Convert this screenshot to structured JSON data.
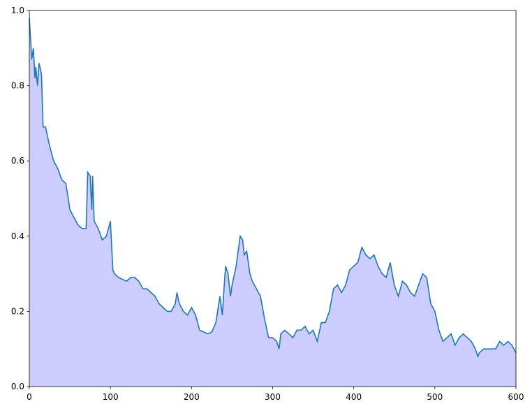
{
  "chart_data": {
    "type": "area",
    "x": [
      0,
      3,
      5,
      7,
      8,
      10,
      12,
      15,
      17,
      20,
      25,
      30,
      35,
      40,
      45,
      48,
      50,
      55,
      60,
      65,
      70,
      72,
      75,
      77,
      78,
      80,
      85,
      90,
      95,
      100,
      103,
      105,
      110,
      115,
      120,
      125,
      130,
      135,
      140,
      145,
      150,
      155,
      160,
      165,
      170,
      175,
      180,
      182,
      185,
      190,
      195,
      200,
      205,
      210,
      215,
      220,
      225,
      230,
      235,
      238,
      240,
      242,
      245,
      248,
      250,
      255,
      260,
      263,
      265,
      268,
      272,
      275,
      280,
      285,
      290,
      295,
      300,
      305,
      308,
      310,
      315,
      320,
      325,
      330,
      335,
      340,
      345,
      350,
      355,
      360,
      365,
      370,
      375,
      380,
      385,
      390,
      395,
      400,
      405,
      410,
      415,
      420,
      425,
      430,
      435,
      440,
      445,
      450,
      455,
      460,
      465,
      470,
      475,
      480,
      485,
      490,
      495,
      500,
      505,
      510,
      515,
      520,
      525,
      530,
      535,
      540,
      545,
      550,
      553,
      555,
      560,
      565,
      570,
      575,
      580,
      585,
      590,
      595,
      600
    ],
    "values": [
      0.98,
      0.87,
      0.9,
      0.82,
      0.85,
      0.8,
      0.86,
      0.83,
      0.69,
      0.69,
      0.64,
      0.6,
      0.58,
      0.55,
      0.54,
      0.5,
      0.47,
      0.45,
      0.43,
      0.42,
      0.42,
      0.57,
      0.56,
      0.47,
      0.56,
      0.44,
      0.42,
      0.39,
      0.4,
      0.44,
      0.31,
      0.3,
      0.29,
      0.285,
      0.28,
      0.29,
      0.29,
      0.28,
      0.26,
      0.26,
      0.25,
      0.24,
      0.22,
      0.21,
      0.2,
      0.2,
      0.22,
      0.25,
      0.22,
      0.2,
      0.19,
      0.21,
      0.19,
      0.15,
      0.145,
      0.14,
      0.145,
      0.17,
      0.24,
      0.19,
      0.26,
      0.32,
      0.3,
      0.24,
      0.27,
      0.32,
      0.4,
      0.39,
      0.35,
      0.36,
      0.3,
      0.28,
      0.26,
      0.24,
      0.18,
      0.13,
      0.13,
      0.12,
      0.1,
      0.14,
      0.15,
      0.14,
      0.13,
      0.15,
      0.15,
      0.16,
      0.14,
      0.15,
      0.12,
      0.17,
      0.17,
      0.2,
      0.26,
      0.27,
      0.25,
      0.27,
      0.31,
      0.32,
      0.33,
      0.37,
      0.35,
      0.34,
      0.35,
      0.32,
      0.3,
      0.29,
      0.33,
      0.27,
      0.24,
      0.28,
      0.27,
      0.25,
      0.24,
      0.27,
      0.3,
      0.29,
      0.22,
      0.2,
      0.15,
      0.12,
      0.13,
      0.14,
      0.11,
      0.13,
      0.14,
      0.13,
      0.12,
      0.1,
      0.08,
      0.09,
      0.1,
      0.1,
      0.1,
      0.1,
      0.12,
      0.11,
      0.12,
      0.11,
      0.09
    ],
    "color": "#1f77b4",
    "fill_color": "#ccccff",
    "xlim": [
      0,
      600
    ],
    "xticks": [
      0,
      100,
      200,
      300,
      400,
      500,
      600
    ],
    "ylim": [
      0,
      1
    ],
    "yticks": [
      {
        "value": 0,
        "label": "0.0"
      },
      {
        "value": 0.2,
        "label": "0.2"
      },
      {
        "value": 0.4,
        "label": "0.4"
      },
      {
        "value": 0.6,
        "label": "0.6"
      },
      {
        "value": 0.8,
        "label": "0.8"
      },
      {
        "value": 1,
        "label": "1.0"
      }
    ]
  }
}
